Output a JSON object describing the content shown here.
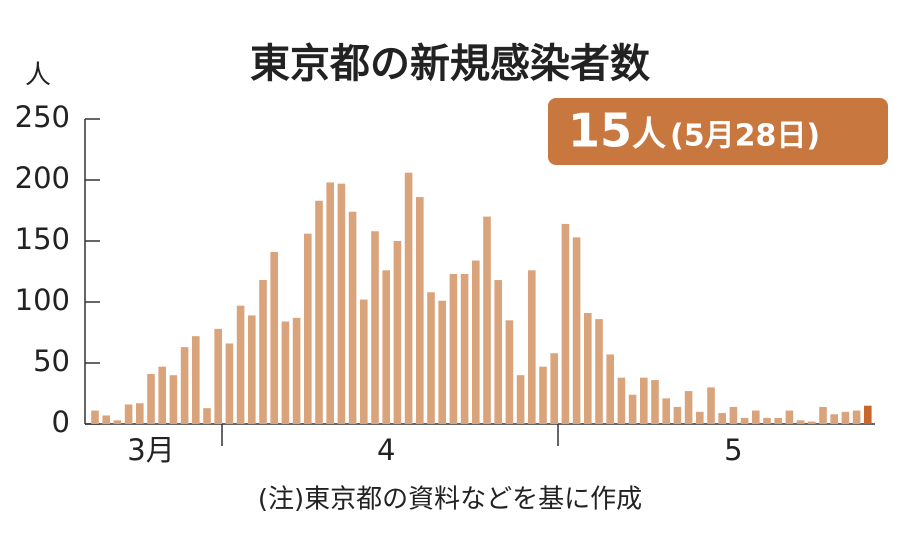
{
  "chart_data": {
    "type": "bar",
    "title": "東京都の新規感染者数",
    "y_unit": "人",
    "badge": {
      "value": "15",
      "unit": "人",
      "date": "(5月28日)"
    },
    "note": "(注)東京都の資料などを基に作成",
    "categories": [
      null,
      null,
      null,
      null,
      null,
      "3月",
      null,
      null,
      null,
      null,
      null,
      null,
      null,
      null,
      null,
      null,
      null,
      null,
      null,
      null,
      null,
      null,
      null,
      null,
      null,
      null,
      "4",
      null,
      null,
      null,
      null,
      null,
      null,
      null,
      null,
      null,
      null,
      null,
      null,
      null,
      null,
      null,
      null,
      null,
      null,
      null,
      null,
      null,
      null,
      null,
      null,
      null,
      null,
      null,
      null,
      null,
      null,
      "5",
      null,
      null,
      null,
      null,
      null,
      null,
      null,
      null,
      null,
      null,
      null,
      null
    ],
    "values": [
      11,
      7,
      3,
      16,
      17,
      41,
      47,
      40,
      63,
      72,
      13,
      78,
      66,
      97,
      89,
      118,
      141,
      84,
      87,
      156,
      183,
      198,
      197,
      174,
      102,
      158,
      126,
      150,
      206,
      186,
      108,
      101,
      123,
      123,
      134,
      170,
      118,
      85,
      40,
      126,
      47,
      58,
      164,
      153,
      91,
      86,
      57,
      38,
      24,
      38,
      36,
      21,
      14,
      27,
      10,
      30,
      9,
      14,
      5,
      11,
      5,
      5,
      11,
      3,
      2,
      14,
      8,
      10,
      11,
      15
    ],
    "color": "#d9a47c",
    "last_color": "#c8662e",
    "badge_color": "#c8773f",
    "ylim": [
      0,
      250
    ],
    "yticks": [
      0,
      50,
      100,
      150,
      200,
      250
    ]
  }
}
